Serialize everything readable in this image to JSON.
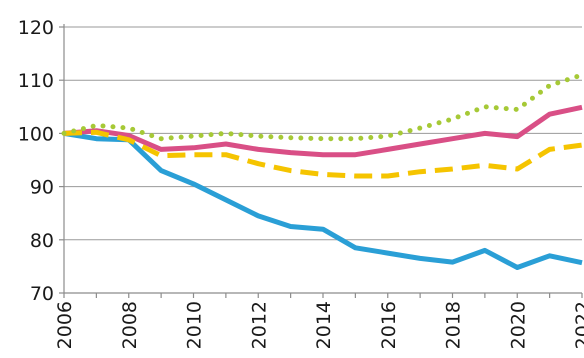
{
  "chart_data": {
    "type": "line",
    "title": "",
    "xlabel": "",
    "ylabel": "",
    "x": [
      2006,
      2007,
      2008,
      2009,
      2010,
      2011,
      2012,
      2013,
      2014,
      2015,
      2016,
      2017,
      2018,
      2019,
      2020,
      2021,
      2022
    ],
    "x_tick_labels": [
      "2006",
      "2008",
      "2010",
      "2012",
      "2014",
      "2016",
      "2018",
      "2020",
      "2022"
    ],
    "y_tick_labels": [
      "70",
      "80",
      "90",
      "100",
      "110",
      "120"
    ],
    "ylim": [
      70,
      120
    ],
    "grid": "horizontal",
    "legend": "none",
    "series": [
      {
        "color": "#2a9fd6",
        "style": "solid",
        "values": [
          100,
          99,
          98.8,
          93,
          90.5,
          87.5,
          84.5,
          82.5,
          82,
          78.5,
          77.5,
          76.5,
          75.8,
          78,
          74.8,
          77,
          75.7
        ]
      },
      {
        "color": "#d94f86",
        "style": "solid",
        "values": [
          100,
          100.5,
          99.6,
          97,
          97.3,
          98,
          97,
          96.4,
          96,
          96,
          97,
          98,
          99,
          100,
          99.4,
          103.6,
          104.9
        ]
      },
      {
        "color": "#f5c400",
        "style": "dashed",
        "values": [
          100,
          100.2,
          98.8,
          95.8,
          96,
          96,
          94.3,
          93,
          92.3,
          92,
          92,
          92.8,
          93.3,
          94,
          93.3,
          97,
          97.8
        ]
      },
      {
        "color": "#a6c936",
        "style": "dotted",
        "values": [
          100,
          101.5,
          101,
          99,
          99.5,
          100,
          99.5,
          99.2,
          99,
          99,
          99.5,
          101,
          102.7,
          105,
          104.5,
          109,
          111
        ]
      }
    ]
  }
}
